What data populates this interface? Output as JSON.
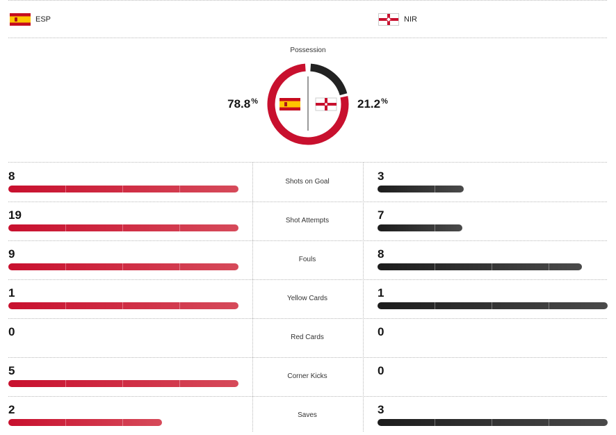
{
  "teams": {
    "home": {
      "abbr": "ESP",
      "flag_icon": "spain-flag-icon",
      "color": "#c8102e"
    },
    "away": {
      "abbr": "NIR",
      "flag_icon": "northern-ireland-flag-icon",
      "color": "#222222"
    }
  },
  "possession": {
    "label": "Possession",
    "home_value": "78.8",
    "away_value": "21.2",
    "unit": "%",
    "home_fraction": 0.788,
    "away_fraction": 0.212
  },
  "stats": [
    {
      "label": "Shots on Goal",
      "home": "8",
      "away": "3",
      "home_fill": 1.0,
      "away_fill": 0.375
    },
    {
      "label": "Shot Attempts",
      "home": "19",
      "away": "7",
      "home_fill": 1.0,
      "away_fill": 0.368
    },
    {
      "label": "Fouls",
      "home": "9",
      "away": "8",
      "home_fill": 1.0,
      "away_fill": 0.889
    },
    {
      "label": "Yellow Cards",
      "home": "1",
      "away": "1",
      "home_fill": 1.0,
      "away_fill": 1.0
    },
    {
      "label": "Red Cards",
      "home": "0",
      "away": "0",
      "home_fill": 0,
      "away_fill": 0
    },
    {
      "label": "Corner Kicks",
      "home": "5",
      "away": "0",
      "home_fill": 1.0,
      "away_fill": 0
    },
    {
      "label": "Saves",
      "home": "2",
      "away": "3",
      "home_fill": 0.667,
      "away_fill": 1.0
    }
  ]
}
